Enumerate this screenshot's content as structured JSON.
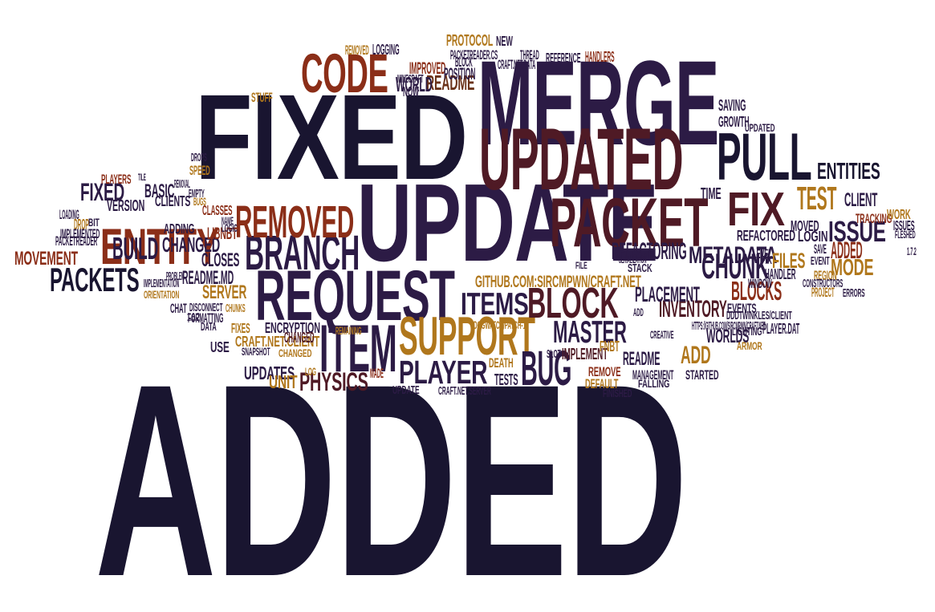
{
  "colors": {
    "navy": "#191530",
    "plum": "#2c1b45",
    "maroon": "#4f1a25",
    "rust": "#8b2e18",
    "ochre": "#b0771c",
    "brown": "#6a3219"
  },
  "words": [
    {
      "text": "ADDED",
      "color": "navy"
    },
    {
      "text": "FIXED",
      "color": "navy"
    },
    {
      "text": "MERGE",
      "color": "plum"
    },
    {
      "text": "UPDATE",
      "color": "plum"
    },
    {
      "text": "UPDATED",
      "color": "maroon"
    },
    {
      "text": "REQUEST",
      "color": "plum"
    },
    {
      "text": "PACKET",
      "color": "maroon"
    },
    {
      "text": "CODE",
      "color": "rust"
    },
    {
      "text": "PULL",
      "color": "navy"
    },
    {
      "text": "SUPPORT",
      "color": "ochre"
    },
    {
      "text": "BRANCH",
      "color": "plum"
    },
    {
      "text": "ENTITY",
      "color": "rust"
    },
    {
      "text": "ITEM",
      "color": "plum"
    },
    {
      "text": "BLOCK",
      "color": "maroon"
    },
    {
      "text": "FIX",
      "color": "maroon"
    },
    {
      "text": "BUG",
      "color": "plum"
    },
    {
      "text": "REMOVED",
      "color": "rust"
    },
    {
      "text": "PACKETS",
      "color": "navy"
    },
    {
      "text": "MASTER",
      "color": "plum"
    },
    {
      "text": "PLAYER",
      "color": "plum"
    },
    {
      "text": "TEST",
      "color": "ochre"
    },
    {
      "text": "ISSUE",
      "color": "plum"
    },
    {
      "text": "CHUNK",
      "color": "plum"
    },
    {
      "text": "ITEMS",
      "color": "plum"
    },
    {
      "text": "PHYSICS",
      "color": "maroon"
    },
    {
      "text": "BUILD",
      "color": "plum"
    },
    {
      "text": "ENTITIES",
      "color": "navy"
    },
    {
      "text": "METADATA",
      "color": "plum"
    },
    {
      "text": "BLOCKS",
      "color": "rust"
    },
    {
      "text": "INVENTORY",
      "color": "maroon"
    },
    {
      "text": "MOVEMENT",
      "color": "rust"
    },
    {
      "text": "REFACTORING",
      "color": "plum"
    },
    {
      "text": "PLACEMENT",
      "color": "plum"
    },
    {
      "text": "GITHUB.COM:SIRCMPWN/CRAFT.NET",
      "color": "ochre"
    },
    {
      "text": "README.MD",
      "color": "plum"
    },
    {
      "text": "CHANGED",
      "color": "plum"
    },
    {
      "text": "FIXED",
      "color": "plum"
    },
    {
      "text": "ADD",
      "color": "ochre"
    },
    {
      "text": "ADDED",
      "color": "rust"
    },
    {
      "text": "MODE",
      "color": "ochre"
    },
    {
      "text": "FILES",
      "color": "ochre"
    },
    {
      "text": "WORLDS",
      "color": "plum"
    },
    {
      "text": "UPDATES",
      "color": "plum"
    },
    {
      "text": "UNIT",
      "color": "ochre"
    },
    {
      "text": "CLOSES",
      "color": "plum"
    },
    {
      "text": "SERVER",
      "color": "ochre"
    },
    {
      "text": "IMPLEMENT",
      "color": "maroon"
    },
    {
      "text": "README",
      "color": "plum"
    },
    {
      "text": "README",
      "color": "brown"
    },
    {
      "text": "WORLD",
      "color": "plum"
    },
    {
      "text": "IMPROVED",
      "color": "rust"
    },
    {
      "text": "BASIC",
      "color": "plum"
    },
    {
      "text": "VERSION",
      "color": "plum"
    },
    {
      "text": "CLIENTS",
      "color": "plum"
    },
    {
      "text": "CLIENT",
      "color": "plum"
    },
    {
      "text": "CRAFT.NET.CLIENT",
      "color": "ochre"
    },
    {
      "text": "FIXES",
      "color": "ochre"
    },
    {
      "text": "REFACTORED",
      "color": "plum"
    },
    {
      "text": "LOGIN",
      "color": "plum"
    },
    {
      "text": "HANDLER",
      "color": "plum"
    },
    {
      "text": "ENCRYPTION",
      "color": "plum"
    },
    {
      "text": "CHANGED",
      "color": "maroon"
    },
    {
      "text": "MOVED",
      "color": "plum"
    },
    {
      "text": "SAVING",
      "color": "plum"
    },
    {
      "text": "GROWTH",
      "color": "plum"
    },
    {
      "text": "USE",
      "color": "plum"
    },
    {
      "text": "TIME",
      "color": "plum"
    },
    {
      "text": "MANAGEMENT",
      "color": "plum"
    },
    {
      "text": "STARTED",
      "color": "plum"
    },
    {
      "text": "TESTS",
      "color": "plum"
    },
    {
      "text": "DEFAULT",
      "color": "ochre"
    },
    {
      "text": "FNBT",
      "color": "ochre"
    },
    {
      "text": "PLAYER.DAT",
      "color": "plum"
    },
    {
      "text": "LIBNBT",
      "color": "rust"
    },
    {
      "text": "CLASSES",
      "color": "rust"
    },
    {
      "text": "ADDING",
      "color": "plum"
    },
    {
      "text": "POSITION",
      "color": "plum"
    },
    {
      "text": "BLOCK",
      "color": "plum"
    },
    {
      "text": "NOW",
      "color": "plum"
    },
    {
      "text": "PROTOCOL",
      "color": "ochre"
    },
    {
      "text": "NEW",
      "color": "plum"
    },
    {
      "text": "REFERENCE",
      "color": "plum"
    },
    {
      "text": "HANDLERS",
      "color": "rust"
    },
    {
      "text": "LOGGING",
      "color": "plum"
    },
    {
      "text": "REMOVED",
      "color": "ochre"
    },
    {
      "text": "PACKETREADER.CS",
      "color": "plum"
    },
    {
      "text": "THREAD",
      "color": "plum"
    },
    {
      "text": "CRAFT.NET.DATA",
      "color": "plum"
    },
    {
      "text": "MINECRAFT",
      "color": "plum"
    },
    {
      "text": "STUFF",
      "color": "ochre"
    },
    {
      "text": "DROPS",
      "color": "plum"
    },
    {
      "text": "SPEED",
      "color": "ochre"
    },
    {
      "text": "PLAYERS",
      "color": "rust"
    },
    {
      "text": "TILE",
      "color": "plum"
    },
    {
      "text": "REMOVAL",
      "color": "plum"
    },
    {
      "text": "EMPTY",
      "color": "plum"
    },
    {
      "text": "BUGS",
      "color": "ochre"
    },
    {
      "text": "LOADING",
      "color": "plum"
    },
    {
      "text": "DROP",
      "color": "ochre"
    },
    {
      "text": "BIT",
      "color": "plum"
    },
    {
      "text": "IMPLEMENTED",
      "color": "plum"
    },
    {
      "text": "PACKETREADER",
      "color": "plum"
    },
    {
      "text": "NAME",
      "color": "plum"
    },
    {
      "text": "LOGIC",
      "color": "plum"
    },
    {
      "text": "PROBLEM",
      "color": "plum"
    },
    {
      "text": "IMPLEMENTATION",
      "color": "plum"
    },
    {
      "text": "ORIENTATION",
      "color": "ochre"
    },
    {
      "text": "CHAT",
      "color": "plum"
    },
    {
      "text": "DISCONNECT",
      "color": "plum"
    },
    {
      "text": "CHUNKS",
      "color": "ochre"
    },
    {
      "text": "FORMATTING",
      "color": "plum"
    },
    {
      "text": "1.6.2",
      "color": "plum"
    },
    {
      "text": "DATA",
      "color": "plum"
    },
    {
      "text": "REMAINING",
      "color": "ochre"
    },
    {
      "text": "DOGWATCH/PATCH-1",
      "color": "ochre"
    },
    {
      "text": "SNAPSHOT",
      "color": "plum"
    },
    {
      "text": "CHANGED",
      "color": "ochre"
    },
    {
      "text": "LOG",
      "color": "ochre"
    },
    {
      "text": "MADE",
      "color": "rust"
    },
    {
      "text": "DEATH",
      "color": "ochre"
    },
    {
      "text": "UPDATE",
      "color": "plum"
    },
    {
      "text": "CRAFT.NET.SERVER",
      "color": "plum"
    },
    {
      "text": "SLOT",
      "color": "plum"
    },
    {
      "text": "REMOVE",
      "color": "rust"
    },
    {
      "text": "FINISHED",
      "color": "plum"
    },
    {
      "text": "FALLING",
      "color": "plum"
    },
    {
      "text": "CREATIVE",
      "color": "plum"
    },
    {
      "text": "LIGHTING",
      "color": "plum"
    },
    {
      "text": "ARMOR",
      "color": "ochre"
    },
    {
      "text": "HTTPS://GITHUB.COM/SIRCMPWN/CRAFT.NET",
      "color": "plum"
    },
    {
      "text": "DDDTWINKLES/CLIENT",
      "color": "plum"
    },
    {
      "text": "EVENTS",
      "color": "plum"
    },
    {
      "text": "WINDOW",
      "color": "plum"
    },
    {
      "text": "ADD",
      "color": "plum"
    },
    {
      "text": "FILE",
      "color": "plum"
    },
    {
      "text": "SERIALIZATION",
      "color": "plum"
    },
    {
      "text": "STACK",
      "color": "plum"
    },
    {
      "text": "LEVEL",
      "color": "plum"
    },
    {
      "text": "FIX",
      "color": "plum"
    },
    {
      "text": "EVENT",
      "color": "plum"
    },
    {
      "text": "SAVE",
      "color": "plum"
    },
    {
      "text": "REGION",
      "color": "ochre"
    },
    {
      "text": "CONSTRUCTORS",
      "color": "plum"
    },
    {
      "text": "PROJECT",
      "color": "ochre"
    },
    {
      "text": "ERRORS",
      "color": "plum"
    },
    {
      "text": "TRACKING",
      "color": "rust"
    },
    {
      "text": "WORK",
      "color": "ochre"
    },
    {
      "text": "ISSUES",
      "color": "plum"
    },
    {
      "text": "FLESHED",
      "color": "plum"
    },
    {
      "text": "1.7.2",
      "color": "plum"
    },
    {
      "text": "UPDATED",
      "color": "plum"
    }
  ]
}
